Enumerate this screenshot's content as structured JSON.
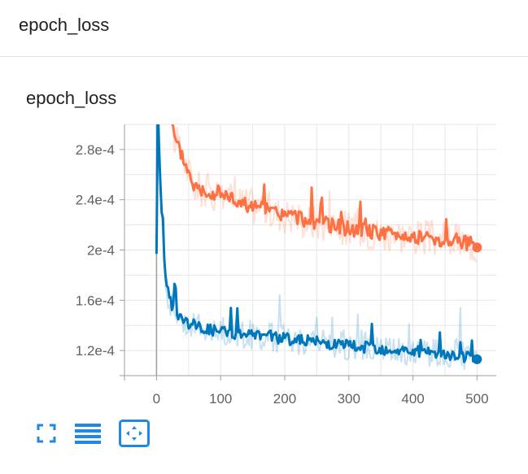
{
  "card": {
    "title": "epoch_loss"
  },
  "toolbar": {
    "buttons": [
      {
        "name": "fullscreen-icon"
      },
      {
        "name": "data-table-icon"
      },
      {
        "name": "fit-domain-icon"
      }
    ]
  },
  "colors": {
    "train": "#ff7043",
    "validation": "#0077bb",
    "grid": "#e6e6e6",
    "axis": "#9e9e9e"
  },
  "chart_data": {
    "type": "line",
    "title": "epoch_loss",
    "xlabel": "",
    "ylabel": "",
    "xlim": [
      -50,
      530
    ],
    "ylim": [
      0.0001,
      0.0003
    ],
    "x_ticks": [
      0,
      100,
      200,
      300,
      400,
      500
    ],
    "x_tick_labels": [
      "0",
      "100",
      "200",
      "300",
      "400",
      "500"
    ],
    "y_ticks": [
      0.00012,
      0.00016,
      0.0002,
      0.00024,
      0.00028
    ],
    "y_tick_labels": [
      "1.2e-4",
      "1.6e-4",
      "2e-4",
      "2.4e-4",
      "2.8e-4"
    ],
    "grid": true,
    "series": [
      {
        "color": "#ff7043",
        "smoothed": [
          [
            0,
            0.00031
          ],
          [
            20,
            0.00031
          ],
          [
            30,
            0.000285
          ],
          [
            40,
            0.000275
          ],
          [
            50,
            0.000262
          ],
          [
            60,
            0.00025
          ],
          [
            70,
            0.000248
          ],
          [
            80,
            0.000247
          ],
          [
            90,
            0.000245
          ],
          [
            100,
            0.000245
          ],
          [
            110,
            0.000243
          ],
          [
            120,
            0.00024
          ],
          [
            130,
            0.000238
          ],
          [
            140,
            0.000236
          ],
          [
            150,
            0.000235
          ],
          [
            160,
            0.000233
          ],
          [
            170,
            0.000232
          ],
          [
            180,
            0.00023
          ],
          [
            190,
            0.000229
          ],
          [
            200,
            0.000228
          ],
          [
            210,
            0.000227
          ],
          [
            220,
            0.000226
          ],
          [
            230,
            0.000224
          ],
          [
            240,
            0.000223
          ],
          [
            250,
            0.000222
          ],
          [
            260,
            0.000221
          ],
          [
            270,
            0.00022
          ],
          [
            280,
            0.000219
          ],
          [
            290,
            0.000218
          ],
          [
            300,
            0.000217
          ],
          [
            310,
            0.000216
          ],
          [
            320,
            0.000215
          ],
          [
            330,
            0.000215
          ],
          [
            340,
            0.000214
          ],
          [
            350,
            0.000213
          ],
          [
            360,
            0.000213
          ],
          [
            370,
            0.000212
          ],
          [
            380,
            0.000212
          ],
          [
            390,
            0.000211
          ],
          [
            400,
            0.000211
          ],
          [
            410,
            0.00021
          ],
          [
            420,
            0.00021
          ],
          [
            430,
            0.000209
          ],
          [
            440,
            0.000209
          ],
          [
            450,
            0.000208
          ],
          [
            460,
            0.000208
          ],
          [
            470,
            0.000207
          ],
          [
            480,
            0.000206
          ],
          [
            490,
            0.000205
          ],
          [
            500,
            0.000202
          ]
        ]
      },
      {
        "color": "#0077bb",
        "smoothed": [
          [
            0,
            0.0002
          ],
          [
            2,
            0.00032
          ],
          [
            5,
            0.00026
          ],
          [
            10,
            0.00021
          ],
          [
            15,
            0.000175
          ],
          [
            20,
            0.00016
          ],
          [
            25,
            0.000155
          ],
          [
            30,
            0.000152
          ],
          [
            35,
            0.000148
          ],
          [
            40,
            0.000145
          ],
          [
            45,
            0.000143
          ],
          [
            50,
            0.000142
          ],
          [
            60,
            0.00014
          ],
          [
            70,
            0.000138
          ],
          [
            80,
            0.000137
          ],
          [
            90,
            0.000136
          ],
          [
            100,
            0.000135
          ],
          [
            110,
            0.000135
          ],
          [
            120,
            0.000134
          ],
          [
            130,
            0.000133
          ],
          [
            140,
            0.000133
          ],
          [
            150,
            0.000132
          ],
          [
            160,
            0.000132
          ],
          [
            170,
            0.000131
          ],
          [
            180,
            0.00013
          ],
          [
            190,
            0.00013
          ],
          [
            200,
            0.000129
          ],
          [
            210,
            0.000129
          ],
          [
            220,
            0.000128
          ],
          [
            230,
            0.000128
          ],
          [
            240,
            0.000127
          ],
          [
            250,
            0.000127
          ],
          [
            260,
            0.000126
          ],
          [
            270,
            0.000126
          ],
          [
            280,
            0.000125
          ],
          [
            290,
            0.000125
          ],
          [
            300,
            0.000124
          ],
          [
            310,
            0.000124
          ],
          [
            320,
            0.000123
          ],
          [
            330,
            0.000123
          ],
          [
            340,
            0.000122
          ],
          [
            350,
            0.000122
          ],
          [
            360,
            0.000121
          ],
          [
            370,
            0.000121
          ],
          [
            380,
            0.00012
          ],
          [
            390,
            0.00012
          ],
          [
            400,
            0.000119
          ],
          [
            410,
            0.000119
          ],
          [
            420,
            0.000118
          ],
          [
            430,
            0.000118
          ],
          [
            440,
            0.000117
          ],
          [
            450,
            0.000117
          ],
          [
            460,
            0.000116
          ],
          [
            470,
            0.000116
          ],
          [
            480,
            0.000115
          ],
          [
            490,
            0.000114
          ],
          [
            500,
            0.000113
          ]
        ]
      }
    ]
  }
}
